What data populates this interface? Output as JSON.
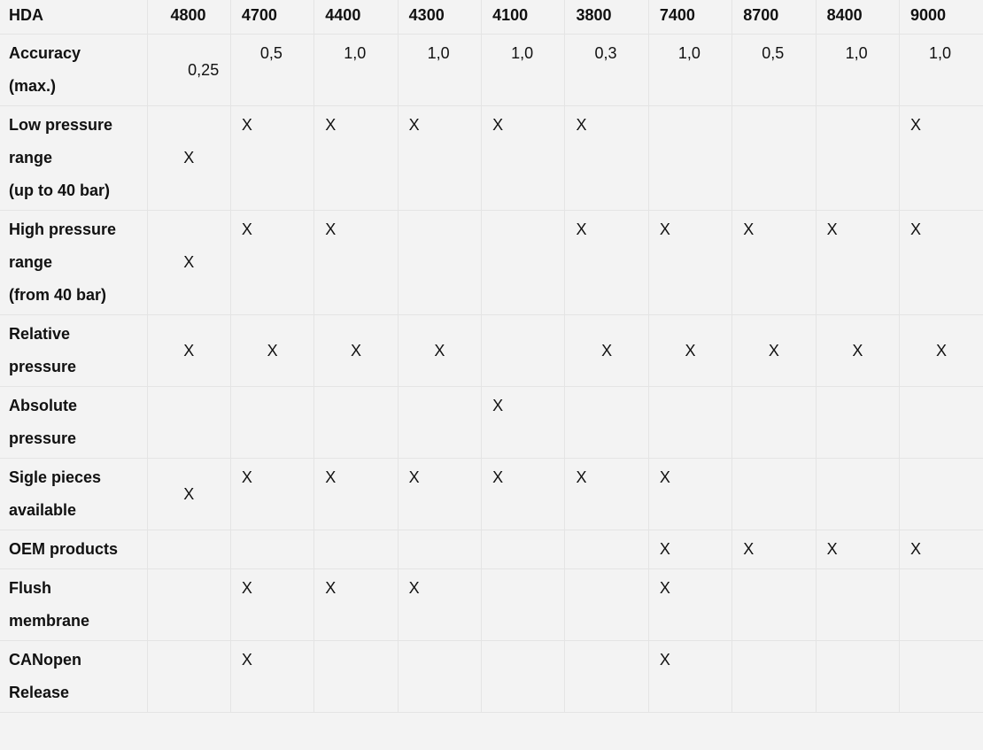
{
  "table": {
    "header": [
      "HDA",
      "4800",
      "4700",
      "4400",
      "4300",
      "4100",
      "3800",
      "7400",
      "8700",
      "8400",
      "9000"
    ],
    "rows": [
      {
        "label": [
          "Accuracy",
          "(max.)"
        ],
        "cells": [
          "0,25",
          "0,5",
          "1,0",
          "1,0",
          "1,0",
          "0,3",
          "1,0",
          "0,5",
          "1,0",
          "1,0"
        ],
        "kind": "acc"
      },
      {
        "label": [
          "Low pressure",
          "range",
          "(up to 40 bar)"
        ],
        "cells": [
          "X",
          "X",
          "X",
          "X",
          "X",
          "X",
          "",
          "",
          "",
          "X"
        ]
      },
      {
        "label": [
          "High pressure",
          "range",
          "(from 40 bar)"
        ],
        "cells": [
          "X",
          "X",
          "X",
          "",
          "",
          "X",
          "X",
          "X",
          "X",
          "X"
        ]
      },
      {
        "label": [
          "Relative",
          "pressure"
        ],
        "cells": [
          "X",
          "X",
          "X",
          "X",
          "",
          "X",
          "X",
          "X",
          "X",
          "X"
        ],
        "kind": "center"
      },
      {
        "label": [
          "Absolute",
          "pressure"
        ],
        "cells": [
          "",
          "",
          "",
          "",
          "X",
          "",
          "",
          "",
          "",
          ""
        ]
      },
      {
        "label": [
          "Sigle pieces",
          "available"
        ],
        "cells": [
          "X",
          "X",
          "X",
          "X",
          "X",
          "X",
          "X",
          "",
          "",
          ""
        ]
      },
      {
        "label": [
          "OEM products"
        ],
        "cells": [
          "",
          "",
          "",
          "",
          "",
          "",
          "X",
          "X",
          "X",
          "X"
        ]
      },
      {
        "label": [
          "Flush",
          "membrane"
        ],
        "cells": [
          "",
          "X",
          "X",
          "X",
          "",
          "",
          "X",
          "",
          "",
          ""
        ]
      },
      {
        "label": [
          "CANopen",
          "Release"
        ],
        "cells": [
          "",
          "X",
          "",
          "",
          "",
          "",
          "X",
          "",
          "",
          ""
        ]
      }
    ]
  }
}
